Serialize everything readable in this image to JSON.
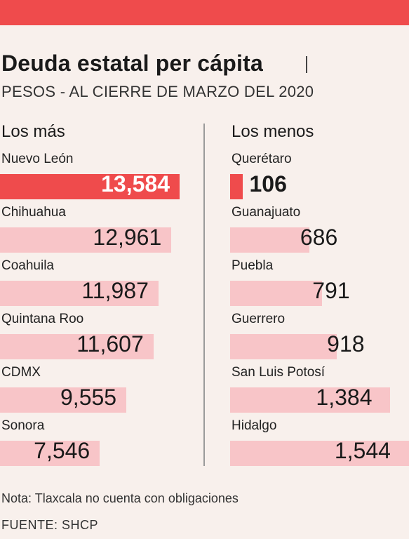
{
  "title": "Deuda estatal per cápita",
  "subtitle": "PESOS - AL CIERRE DE MARZO DEL 2020",
  "colors": {
    "accent": "#ef4b4c",
    "bar": "#f8c5c8",
    "background": "#f8f0ec"
  },
  "chart_data": [
    {
      "type": "bar",
      "orientation": "horizontal",
      "title": "Los más",
      "categories": [
        "Nuevo León",
        "Chihuahua",
        "Coahuila",
        "Quintana Roo",
        "CDMX",
        "Sonora"
      ],
      "values": [
        13584,
        12961,
        11987,
        11607,
        9555,
        7546
      ],
      "labels": [
        "13,584",
        "12,961",
        "11,987",
        "11,607",
        "9,555",
        "7,546"
      ],
      "highlight_index": 0,
      "grid": false
    },
    {
      "type": "bar",
      "orientation": "horizontal",
      "title": "Los menos",
      "categories": [
        "Querétaro",
        "Guanajuato",
        "Puebla",
        "Guerrero",
        "San Luis Potosí",
        "Hidalgo"
      ],
      "values": [
        106,
        686,
        791,
        918,
        1384,
        1544
      ],
      "labels": [
        "106",
        "686",
        "791",
        "918",
        "1,384",
        "1,544"
      ],
      "highlight_index": 0,
      "grid": false
    }
  ],
  "note": "Nota: Tlaxcala no cuenta con obligaciones",
  "source": "FUENTE:  SHCP"
}
